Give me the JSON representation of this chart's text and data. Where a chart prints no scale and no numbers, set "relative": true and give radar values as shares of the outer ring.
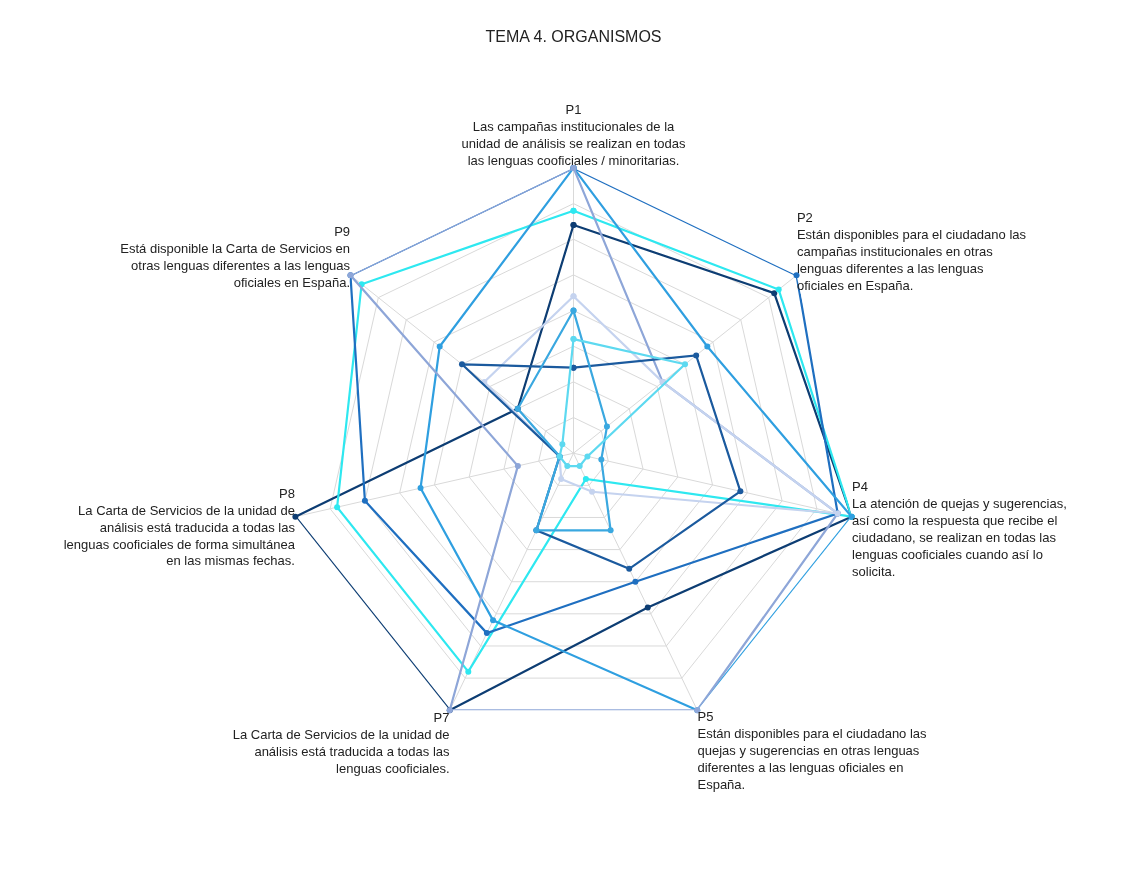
{
  "chart_data": {
    "type": "radar",
    "title": "TEMA 4. ORGANISMOS",
    "relative": true,
    "grid": true,
    "marker": "circle",
    "line_style": "solid",
    "categories": [
      "P1\nLas campañas institucionales de la\nunidad de análisis se realizan en todas\nlas lenguas cooficiales / minoritarias.",
      "P2\nEstán disponibles para el ciudadano las\ncampañas institucionales en otras\nlenguas diferentes a las lenguas\noficiales en España.",
      "P4\nLa atención de quejas y sugerencias,\nasí como la respuesta que recibe el\nciudadano, se realizan en todas las\nlenguas cooficiales cuando así lo\nsolicita.",
      "P5\nEstán disponibles para el ciudadano las\nquejas y sugerencias en otras lenguas\ndiferentes a las lenguas oficiales en\nEspaña.",
      "P7\nLa Carta de Servicios de la unidad de\nanálisis está traducida a todas las\nlenguas cooficiales.",
      "P8\nLa Carta de Servicios de la unidad de\nanálisis está traducida a todas las\nlenguas cooficiales de forma simultánea\nen las mismas fechas.",
      "P9\nEstá disponible la Carta de Servicios en\notras lenguas diferentes a las lenguas\noficiales en España."
    ],
    "series": [
      {
        "color": "#0d3d73",
        "values": [
          0.8,
          0.9,
          1.0,
          0.6,
          1.0,
          1.0,
          0.25
        ]
      },
      {
        "color": "#2ee8f0",
        "values": [
          0.85,
          0.92,
          1.0,
          0.1,
          0.85,
          0.85,
          0.95
        ]
      },
      {
        "color": "#1f6fc0",
        "values": [
          1.0,
          1.0,
          0.95,
          0.5,
          0.7,
          0.75,
          1.0
        ]
      },
      {
        "color": "#2f9fe0",
        "values": [
          1.0,
          0.6,
          1.0,
          1.0,
          0.65,
          0.55,
          0.6
        ]
      },
      {
        "color": "#8ea6d8",
        "values": [
          1.0,
          0.4,
          0.95,
          1.0,
          1.0,
          0.2,
          1.0
        ]
      },
      {
        "color": "#c5d3ef",
        "values": [
          0.55,
          0.4,
          0.95,
          0.15,
          0.1,
          0.05,
          0.4
        ]
      },
      {
        "color": "#1b5a9e",
        "values": [
          0.3,
          0.55,
          0.6,
          0.45,
          0.3,
          0.05,
          0.5
        ]
      },
      {
        "color": "#3aa8e0",
        "values": [
          0.5,
          0.15,
          0.1,
          0.3,
          0.3,
          0.05,
          0.25
        ]
      },
      {
        "color": "#5dd9f0",
        "values": [
          0.4,
          0.5,
          0.05,
          0.05,
          0.05,
          0.05,
          0.05
        ]
      }
    ]
  }
}
